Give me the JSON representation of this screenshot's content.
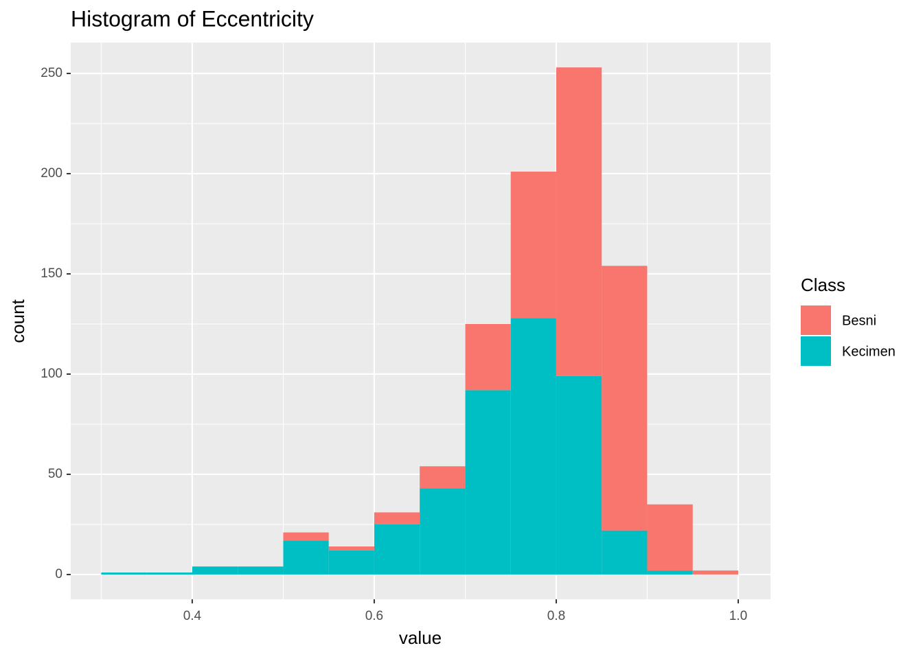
{
  "chart_data": {
    "type": "histogram",
    "title": "Histogram of Eccentricity",
    "x_label": "value",
    "y_label": "count",
    "legend_title": "Class",
    "legend_position": "right",
    "bins": [
      0.3,
      0.35,
      0.4,
      0.45,
      0.5,
      0.55,
      0.6,
      0.65,
      0.7,
      0.75,
      0.8,
      0.85,
      0.9,
      0.95,
      1.0
    ],
    "series": [
      {
        "name": "Besni",
        "color": "#F8766D",
        "values": [
          0,
          0,
          0,
          0,
          4,
          2,
          6,
          11,
          33,
          73,
          154,
          132,
          33,
          2
        ]
      },
      {
        "name": "Kecimen",
        "color": "#00BFC4",
        "values": [
          1,
          1,
          4,
          4,
          17,
          12,
          25,
          43,
          92,
          128,
          99,
          22,
          2,
          0
        ]
      }
    ],
    "stacked": true,
    "xlim": [
      0.2665,
      1.0355
    ],
    "ylim": [
      -12.35,
      265.4
    ],
    "xticks": [
      0.4,
      0.6,
      0.8,
      {
        "value": 1,
        "label": "1.0"
      }
    ],
    "yticks": [
      0,
      50,
      100,
      150,
      200,
      250
    ],
    "x_minor_ticks": [
      0.3,
      0.5,
      0.7,
      0.9
    ],
    "y_minor_ticks": [
      25,
      75,
      125,
      175,
      225
    ],
    "grid": true
  }
}
